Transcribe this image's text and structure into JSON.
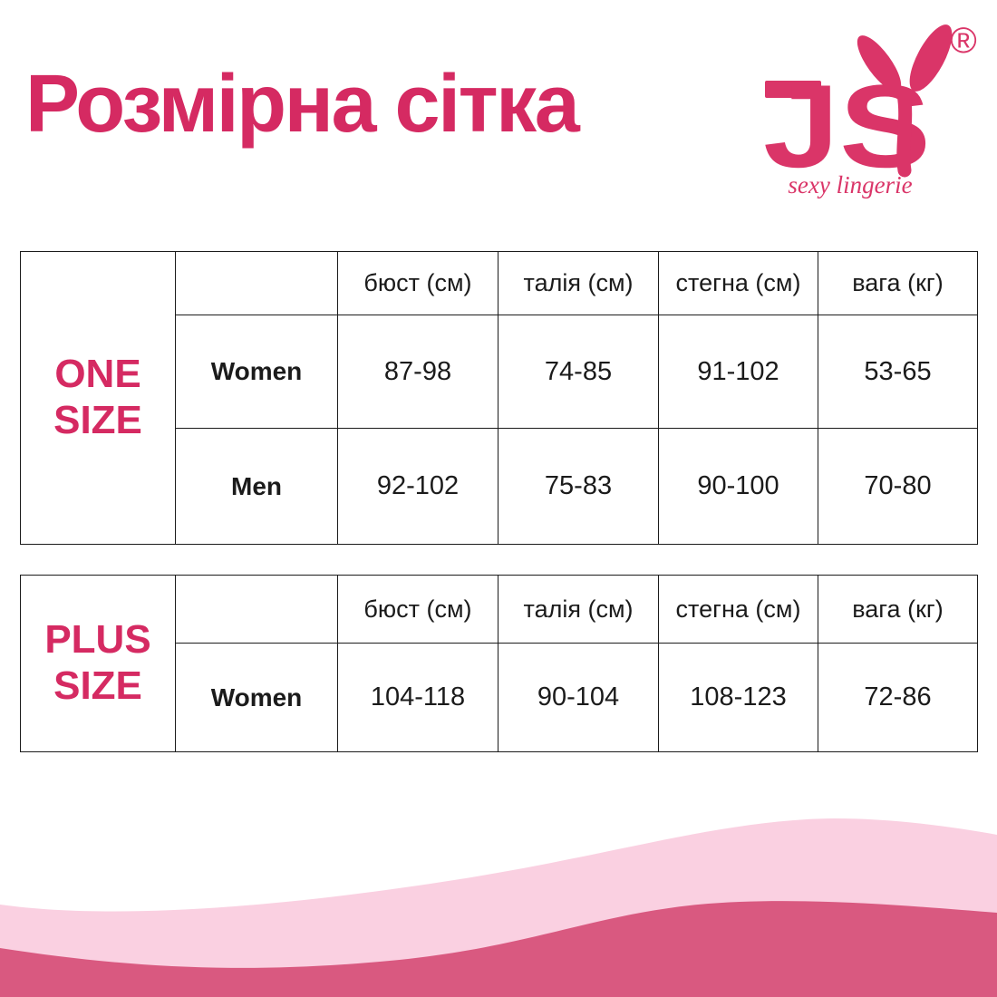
{
  "page": {
    "title": "Розмірна сітка"
  },
  "logo": {
    "brand": "JSY",
    "letters": "JS",
    "registered": "®",
    "tagline": "sexy lingerie"
  },
  "colors": {
    "brand_pink": "#d52a62",
    "logo_pink": "#da3568",
    "wave_light": "#fad0e1",
    "wave_dark": "#d95980",
    "text": "#1b1b1b",
    "background": "#ffffff"
  },
  "tables": [
    {
      "size_label_lines": [
        "ONE",
        "SIZE"
      ],
      "columns": [
        "бюст (см)",
        "талія (см)",
        "стегна (см)",
        "вага (кг)"
      ],
      "rows": [
        {
          "name": "Women",
          "values": [
            "87-98",
            "74-85",
            "91-102",
            "53-65"
          ]
        },
        {
          "name": "Men",
          "values": [
            "92-102",
            "75-83",
            "90-100",
            "70-80"
          ]
        }
      ]
    },
    {
      "size_label_lines": [
        "PLUS",
        "SIZE"
      ],
      "columns": [
        "бюст (см)",
        "талія (см)",
        "стегна (см)",
        "вага (кг)"
      ],
      "rows": [
        {
          "name": "Women",
          "values": [
            "104-118",
            "90-104",
            "108-123",
            "72-86"
          ]
        }
      ]
    }
  ]
}
